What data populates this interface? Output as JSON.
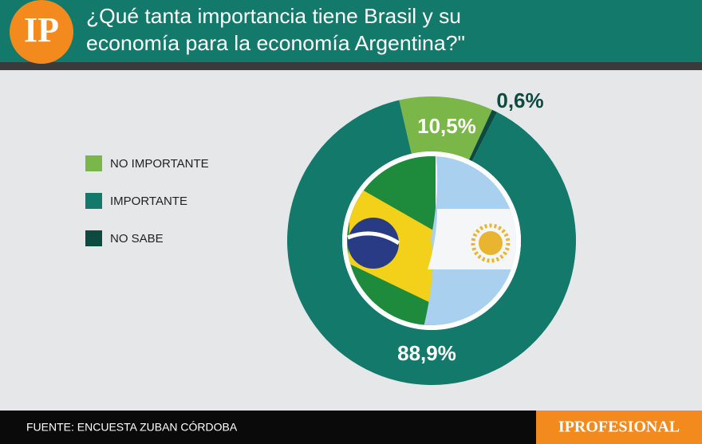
{
  "logo": "IP",
  "chart_data": {
    "type": "donut",
    "title": [
      "¿Qué tanta importancia tiene Brasil y su",
      "economía para la economía Argentina?\""
    ],
    "categories": [
      "NO IMPORTANTE",
      "IMPORTANTE",
      "NO SABE"
    ],
    "values": [
      10.5,
      88.9,
      0.6
    ],
    "value_labels": [
      "10,5%",
      "88,9%",
      "0,6%"
    ],
    "colors": [
      "#7ab648",
      "#13796b",
      "#0d4a40"
    ],
    "legend": "left"
  },
  "footer": {
    "source": "FUENTE: ENCUESTA ZUBAN CÓRDOBA",
    "brand": "IPROFESIONAL"
  }
}
